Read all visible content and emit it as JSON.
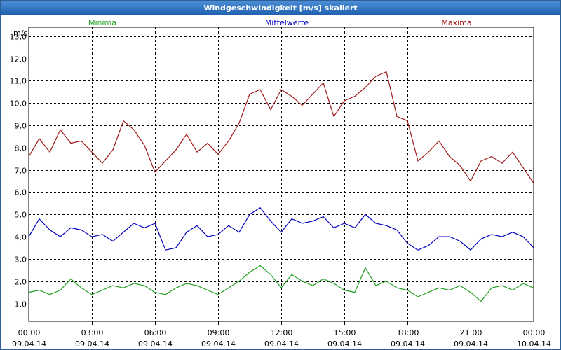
{
  "window": {
    "title": "Windgeschwindigkeit [m/s] skaliert"
  },
  "chart_data": {
    "type": "line",
    "title": "Windgeschwindigkeit [m/s] skaliert",
    "ylabel": "m/s",
    "ylim": [
      0.2,
      13.4
    ],
    "yticks": [
      1.0,
      2.0,
      3.0,
      4.0,
      5.0,
      6.0,
      7.0,
      8.0,
      9.0,
      10.0,
      11.0,
      12.0,
      13.0
    ],
    "ytick_labels": [
      "1,0",
      "2,0",
      "3,0",
      "4,0",
      "5,0",
      "6,0",
      "7,0",
      "8,0",
      "9,0",
      "10,0",
      "11,0",
      "12,0",
      "13,0"
    ],
    "xlim": [
      0,
      24
    ],
    "xticks": [
      {
        "x": 0,
        "time": "00:00",
        "date": "09.04.14"
      },
      {
        "x": 3,
        "time": "03:00",
        "date": "09.04.14"
      },
      {
        "x": 6,
        "time": "06:00",
        "date": "09.04.14"
      },
      {
        "x": 9,
        "time": "09:00",
        "date": "09.04.14"
      },
      {
        "x": 12,
        "time": "12:00",
        "date": "09.04.14"
      },
      {
        "x": 15,
        "time": "15:00",
        "date": "09.04.14"
      },
      {
        "x": 18,
        "time": "18:00",
        "date": "09.04.14"
      },
      {
        "x": 21,
        "time": "21:00",
        "date": "09.04.14"
      },
      {
        "x": 24,
        "time": "00:00",
        "date": "10.04.14"
      }
    ],
    "grid": true,
    "legend_position": "top",
    "series": [
      {
        "name": "Minima",
        "color": "#20a020",
        "x": [
          0,
          0.5,
          1,
          1.5,
          2,
          2.5,
          3,
          3.5,
          4,
          4.5,
          5,
          5.5,
          6,
          6.5,
          7,
          7.5,
          8,
          8.5,
          9,
          9.5,
          10,
          10.5,
          11,
          11.5,
          12,
          12.5,
          13,
          13.5,
          14,
          14.5,
          15,
          15.5,
          16,
          16.5,
          17,
          17.5,
          18,
          18.5,
          19,
          19.5,
          20,
          20.5,
          21,
          21.5,
          22,
          22.5,
          23,
          23.5,
          24
        ],
        "values": [
          1.5,
          1.6,
          1.4,
          1.6,
          2.1,
          1.7,
          1.4,
          1.6,
          1.8,
          1.7,
          1.9,
          1.8,
          1.5,
          1.4,
          1.7,
          1.9,
          1.8,
          1.6,
          1.4,
          1.7,
          2.0,
          2.4,
          2.7,
          2.3,
          1.7,
          2.3,
          2.0,
          1.8,
          2.1,
          1.9,
          1.6,
          1.5,
          2.6,
          1.8,
          2.0,
          1.7,
          1.6,
          1.3,
          1.5,
          1.7,
          1.6,
          1.8,
          1.5,
          1.1,
          1.7,
          1.8,
          1.6,
          1.9,
          1.7
        ]
      },
      {
        "name": "Mittelwerte",
        "color": "#0000c0",
        "x": [
          0,
          0.5,
          1,
          1.5,
          2,
          2.5,
          3,
          3.5,
          4,
          4.5,
          5,
          5.5,
          6,
          6.5,
          7,
          7.5,
          8,
          8.5,
          9,
          9.5,
          10,
          10.5,
          11,
          11.5,
          12,
          12.5,
          13,
          13.5,
          14,
          14.5,
          15,
          15.5,
          16,
          16.5,
          17,
          17.5,
          18,
          18.5,
          19,
          19.5,
          20,
          20.5,
          21,
          21.5,
          22,
          22.5,
          23,
          23.5,
          24
        ],
        "values": [
          4.0,
          4.8,
          4.3,
          4.0,
          4.4,
          4.3,
          4.0,
          4.1,
          3.8,
          4.2,
          4.6,
          4.4,
          4.6,
          3.4,
          3.5,
          4.2,
          4.5,
          4.0,
          4.1,
          4.5,
          4.2,
          5.0,
          5.3,
          4.7,
          4.2,
          4.8,
          4.6,
          4.7,
          4.9,
          4.4,
          4.6,
          4.4,
          5.0,
          4.6,
          4.5,
          4.3,
          3.7,
          3.4,
          3.6,
          4.0,
          4.0,
          3.8,
          3.4,
          3.9,
          4.1,
          4.0,
          4.2,
          4.0,
          3.5
        ]
      },
      {
        "name": "Maxima",
        "color": "#a01818",
        "x": [
          0,
          0.5,
          1,
          1.5,
          2,
          2.5,
          3,
          3.5,
          4,
          4.5,
          5,
          5.5,
          6,
          6.5,
          7,
          7.5,
          8,
          8.5,
          9,
          9.5,
          10,
          10.5,
          11,
          11.5,
          12,
          12.5,
          13,
          13.5,
          14,
          14.5,
          15,
          15.5,
          16,
          16.5,
          17,
          17.5,
          18,
          18.5,
          19,
          19.5,
          20,
          20.5,
          21,
          21.5,
          22,
          22.5,
          23,
          23.5,
          24
        ],
        "values": [
          7.6,
          8.4,
          7.8,
          8.8,
          8.2,
          8.3,
          7.8,
          7.3,
          7.9,
          9.2,
          8.8,
          8.1,
          6.9,
          7.4,
          7.9,
          8.6,
          7.8,
          8.2,
          7.7,
          8.3,
          9.1,
          10.4,
          10.6,
          9.7,
          10.6,
          10.3,
          9.9,
          10.4,
          10.9,
          9.4,
          10.1,
          10.3,
          10.7,
          11.2,
          11.4,
          9.4,
          9.2,
          7.4,
          7.8,
          8.3,
          7.6,
          7.2,
          6.5,
          7.4,
          7.6,
          7.3,
          7.8,
          7.1,
          6.4
        ]
      }
    ]
  }
}
